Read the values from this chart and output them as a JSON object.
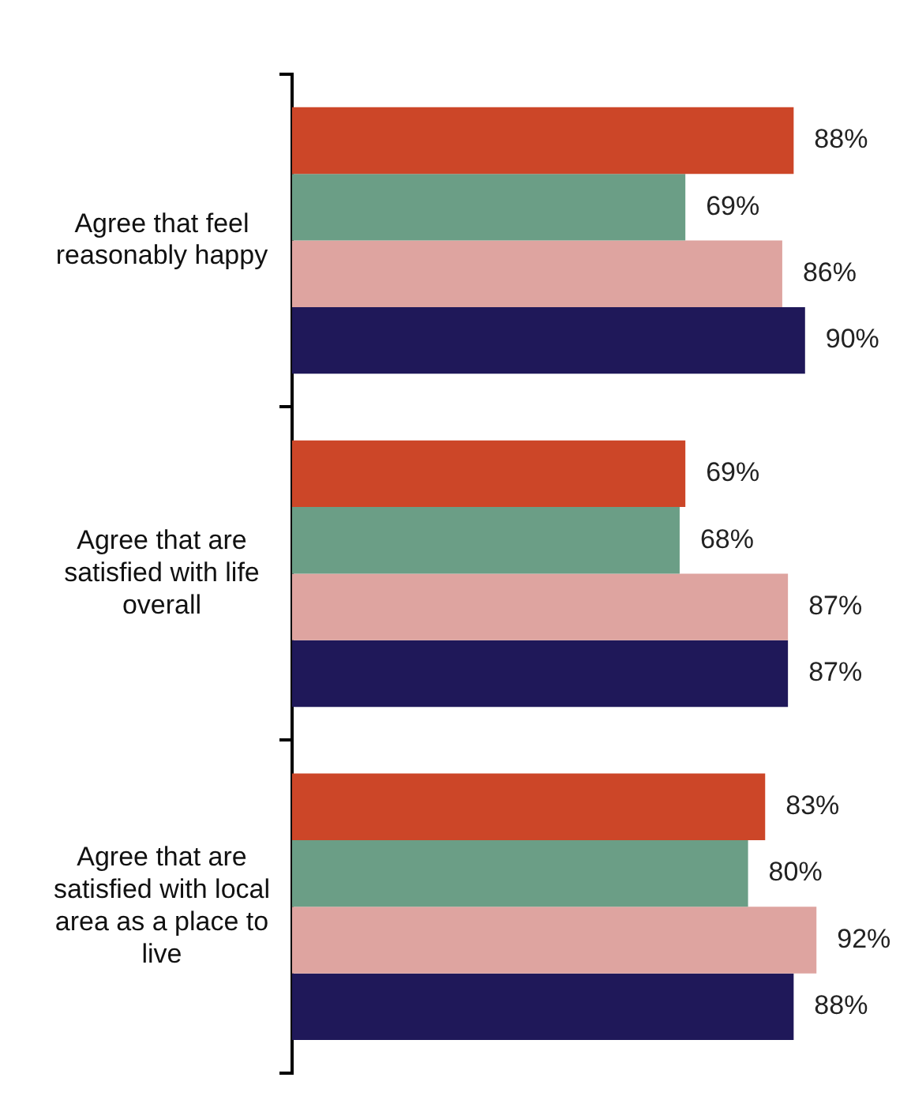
{
  "chart_data": {
    "type": "bar",
    "orientation": "horizontal",
    "categories": [
      "Agree that feel reasonably happy",
      "Agree that are satisfied with life overall",
      "Agree that are satisfied with local area as a place to live"
    ],
    "series": [
      {
        "color": "#cc4628",
        "values": [
          88,
          69,
          83
        ],
        "value_labels": [
          "88%",
          "69%",
          "83%"
        ]
      },
      {
        "color": "#6b9e86",
        "values": [
          69,
          68,
          80
        ],
        "value_labels": [
          "69%",
          "68%",
          "80%"
        ]
      },
      {
        "color": "#dea4a0",
        "values": [
          86,
          87,
          92
        ],
        "value_labels": [
          "86%",
          "87%",
          "92%"
        ]
      },
      {
        "color": "#1f1859",
        "values": [
          90,
          87,
          88
        ],
        "value_labels": [
          "90%",
          "87%",
          "88%"
        ]
      }
    ],
    "tick_labels": "y",
    "grid": false,
    "legend": false
  }
}
